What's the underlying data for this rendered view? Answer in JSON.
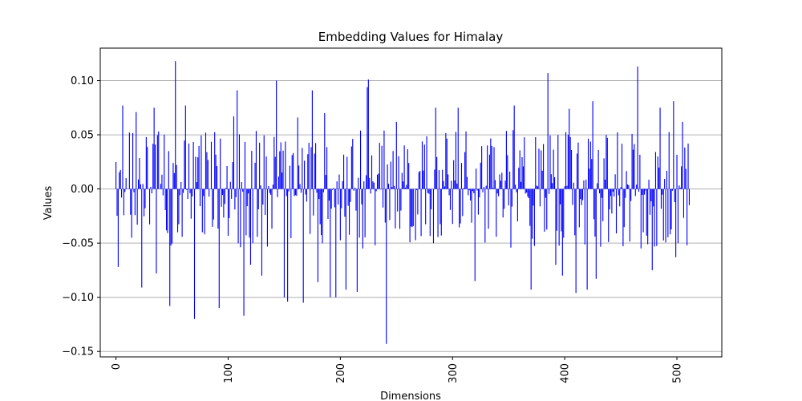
{
  "chart_data": {
    "type": "bar",
    "title": "Embedding Values for Himalay",
    "xlabel": "Dimensions",
    "ylabel": "Values",
    "xlim": [
      -14,
      540
    ],
    "ylim": [
      -0.155,
      0.13
    ],
    "xticks": [
      0,
      100,
      200,
      300,
      400,
      500
    ],
    "yticks": [
      0.1,
      0.05,
      0.0,
      -0.05,
      -0.1,
      -0.15
    ],
    "ytick_labels": [
      "0.10",
      "0.05",
      "0.00",
      "−0.05",
      "−0.10",
      "−0.15"
    ],
    "grid": "y",
    "bar_color": "#0000ff",
    "seed": 1337,
    "values": [
      {
        "x": 0,
        "y": 0.025
      },
      {
        "x": 2,
        "y": -0.072
      },
      {
        "x": 6,
        "y": 0.077
      },
      {
        "x": 14,
        "y": -0.045
      },
      {
        "x": 18,
        "y": 0.071
      },
      {
        "x": 23,
        "y": -0.091
      },
      {
        "x": 31,
        "y": 0.002
      },
      {
        "x": 34,
        "y": 0.075
      },
      {
        "x": 36,
        "y": -0.078
      },
      {
        "x": 48,
        "y": -0.108
      },
      {
        "x": 53,
        "y": 0.118
      },
      {
        "x": 55,
        "y": -0.04
      },
      {
        "x": 62,
        "y": 0.077
      },
      {
        "x": 70,
        "y": -0.12
      },
      {
        "x": 80,
        "y": 0.052
      },
      {
        "x": 86,
        "y": -0.035
      },
      {
        "x": 92,
        "y": -0.11
      },
      {
        "x": 105,
        "y": 0.067
      },
      {
        "x": 108,
        "y": 0.091
      },
      {
        "x": 114,
        "y": -0.117
      },
      {
        "x": 120,
        "y": -0.07
      },
      {
        "x": 130,
        "y": -0.08
      },
      {
        "x": 143,
        "y": 0.1
      },
      {
        "x": 150,
        "y": -0.1
      },
      {
        "x": 153,
        "y": -0.104
      },
      {
        "x": 162,
        "y": 0.066
      },
      {
        "x": 167,
        "y": -0.105
      },
      {
        "x": 175,
        "y": 0.091
      },
      {
        "x": 180,
        "y": -0.086
      },
      {
        "x": 186,
        "y": 0.07
      },
      {
        "x": 191,
        "y": -0.1
      },
      {
        "x": 196,
        "y": -0.1
      },
      {
        "x": 205,
        "y": -0.093
      },
      {
        "x": 215,
        "y": -0.095
      },
      {
        "x": 224,
        "y": 0.094
      },
      {
        "x": 225,
        "y": 0.101
      },
      {
        "x": 241,
        "y": -0.143
      },
      {
        "x": 250,
        "y": 0.062
      },
      {
        "x": 285,
        "y": 0.075
      },
      {
        "x": 305,
        "y": 0.075
      },
      {
        "x": 320,
        "y": -0.085
      },
      {
        "x": 355,
        "y": 0.077
      },
      {
        "x": 370,
        "y": -0.093
      },
      {
        "x": 385,
        "y": 0.107
      },
      {
        "x": 392,
        "y": -0.07
      },
      {
        "x": 398,
        "y": -0.08
      },
      {
        "x": 404,
        "y": 0.074
      },
      {
        "x": 410,
        "y": -0.096
      },
      {
        "x": 420,
        "y": -0.093
      },
      {
        "x": 425,
        "y": 0.081
      },
      {
        "x": 428,
        "y": -0.083
      },
      {
        "x": 465,
        "y": 0.113
      },
      {
        "x": 470,
        "y": -0.04
      },
      {
        "x": 478,
        "y": -0.075
      },
      {
        "x": 485,
        "y": 0.075
      },
      {
        "x": 497,
        "y": 0.081
      },
      {
        "x": 499,
        "y": -0.063
      },
      {
        "x": 505,
        "y": 0.062
      },
      {
        "x": 509,
        "y": -0.052
      },
      {
        "x": 511,
        "y": -0.015
      }
    ],
    "fill_value_range": [
      -0.055,
      0.055
    ]
  }
}
